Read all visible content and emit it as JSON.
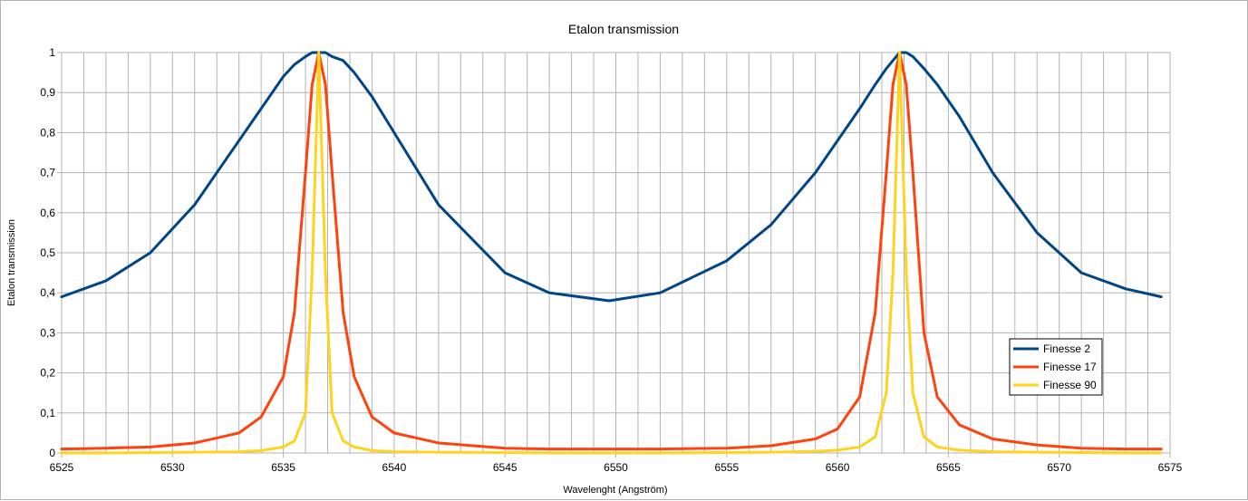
{
  "chart_data": {
    "type": "line",
    "title": "Etalon transmission",
    "xlabel": "Wavelenght (Angström)",
    "ylabel": "Etalon transmission",
    "xlim": [
      6525,
      6575
    ],
    "ylim": [
      0,
      1
    ],
    "x_ticks": [
      "6525",
      "6530",
      "6535",
      "6540",
      "6545",
      "6550",
      "6555",
      "6560",
      "6565",
      "6570",
      "6575"
    ],
    "y_ticks": [
      "0",
      "0,1",
      "0,2",
      "0,3",
      "0,4",
      "0,5",
      "0,6",
      "0,7",
      "0,8",
      "0,9",
      "1"
    ],
    "grid": true,
    "legend_position": "right",
    "x": [
      6525,
      6527,
      6529,
      6531,
      6533,
      6534,
      6535,
      6535.5,
      6536,
      6536.3,
      6536.6,
      6536.9,
      6537.2,
      6537.7,
      6538.2,
      6539,
      6540,
      6542,
      6545,
      6547,
      6549.7,
      6552,
      6555,
      6557,
      6559,
      6560,
      6561,
      6561.7,
      6562.2,
      6562.5,
      6562.8,
      6563.1,
      6563.4,
      6563.9,
      6564.5,
      6565.5,
      6567,
      6569,
      6571,
      6573,
      6574.6
    ],
    "series": [
      {
        "name": "Finesse 2",
        "color": "#004586",
        "values": [
          0.39,
          0.43,
          0.5,
          0.62,
          0.78,
          0.86,
          0.94,
          0.97,
          0.99,
          1.0,
          1.0,
          1.0,
          0.99,
          0.98,
          0.95,
          0.89,
          0.8,
          0.62,
          0.45,
          0.4,
          0.38,
          0.4,
          0.48,
          0.57,
          0.7,
          0.78,
          0.86,
          0.92,
          0.96,
          0.98,
          1.0,
          1.0,
          0.99,
          0.96,
          0.92,
          0.84,
          0.7,
          0.55,
          0.45,
          0.41,
          0.39
        ]
      },
      {
        "name": "Finesse 17",
        "color": "#ff420e",
        "values": [
          0.01,
          0.012,
          0.015,
          0.025,
          0.05,
          0.09,
          0.19,
          0.35,
          0.7,
          0.92,
          1.0,
          0.92,
          0.7,
          0.35,
          0.19,
          0.09,
          0.05,
          0.025,
          0.012,
          0.01,
          0.01,
          0.01,
          0.012,
          0.018,
          0.035,
          0.06,
          0.14,
          0.35,
          0.7,
          0.92,
          1.0,
          0.92,
          0.7,
          0.3,
          0.14,
          0.07,
          0.035,
          0.02,
          0.012,
          0.01,
          0.01
        ]
      },
      {
        "name": "Finesse 90",
        "color": "#ffd320",
        "values": [
          0.0,
          0.0,
          0.001,
          0.002,
          0.003,
          0.006,
          0.015,
          0.03,
          0.1,
          0.45,
          1.0,
          0.45,
          0.1,
          0.03,
          0.015,
          0.006,
          0.003,
          0.002,
          0.001,
          0.0,
          0.0,
          0.0,
          0.001,
          0.002,
          0.004,
          0.007,
          0.015,
          0.04,
          0.15,
          0.45,
          1.0,
          0.45,
          0.15,
          0.04,
          0.015,
          0.007,
          0.003,
          0.002,
          0.001,
          0.0,
          0.0
        ]
      }
    ]
  }
}
